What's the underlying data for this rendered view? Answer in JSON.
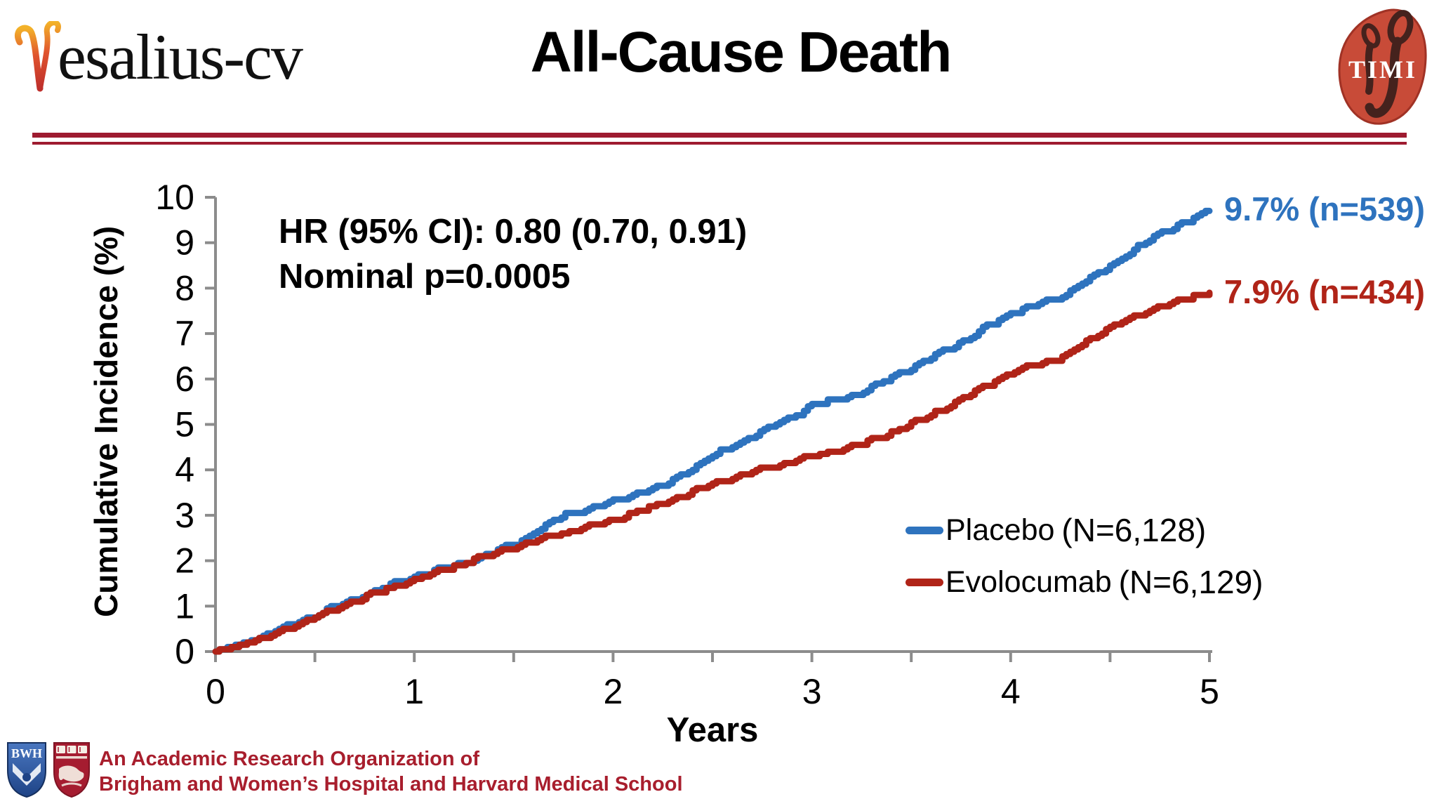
{
  "header": {
    "logo_text": "esalius-cv",
    "title": "All-Cause Death",
    "timi": "TIMI"
  },
  "chart_data": {
    "type": "line",
    "title": "All-Cause Death",
    "xlabel": "Years",
    "ylabel": "Cumulative Incidence (%)",
    "xlim": [
      0,
      5
    ],
    "ylim": [
      0,
      10
    ],
    "x_ticks": [
      0,
      1,
      2,
      3,
      4,
      5
    ],
    "x_minor_ticks_every": 0.5,
    "y_ticks": [
      0,
      1,
      2,
      3,
      4,
      5,
      6,
      7,
      8,
      9,
      10
    ],
    "grid": false,
    "legend_position": "inside lower right",
    "annotations": [
      "HR (95% CI): 0.80 (0.70, 0.91)",
      "Nominal p=0.0005"
    ],
    "x": [
      0,
      0.25,
      0.5,
      0.75,
      1,
      1.25,
      1.5,
      1.75,
      2,
      2.25,
      2.5,
      2.75,
      3,
      3.25,
      3.5,
      3.75,
      4,
      4.25,
      4.5,
      4.75,
      5
    ],
    "series": [
      {
        "name": "Placebo",
        "n_label": "(N=6,128)",
        "end_label": "9.7% (n=539)",
        "color": "#2E73BE",
        "values": [
          0,
          0.35,
          0.8,
          1.25,
          1.65,
          1.95,
          2.35,
          3.0,
          3.3,
          3.65,
          4.3,
          4.85,
          5.4,
          5.7,
          6.25,
          6.8,
          7.45,
          7.8,
          8.5,
          9.2,
          9.7
        ]
      },
      {
        "name": "Evolocumab",
        "n_label": "(N=6,129)",
        "end_label": "7.9% (n=434)",
        "color": "#B02418",
        "values": [
          0,
          0.3,
          0.75,
          1.2,
          1.58,
          1.95,
          2.3,
          2.6,
          2.9,
          3.25,
          3.7,
          4.0,
          4.3,
          4.55,
          5.0,
          5.55,
          6.15,
          6.45,
          7.15,
          7.6,
          7.9
        ]
      }
    ]
  },
  "footer": {
    "bwh": "BWH",
    "line1": "An Academic Research Organization of",
    "line2": "Brigham and Women’s Hospital and Harvard Medical School"
  },
  "colors": {
    "rule": "#9E1B30",
    "axis": "#8C8C8C",
    "footer_text": "#A81E2D"
  }
}
